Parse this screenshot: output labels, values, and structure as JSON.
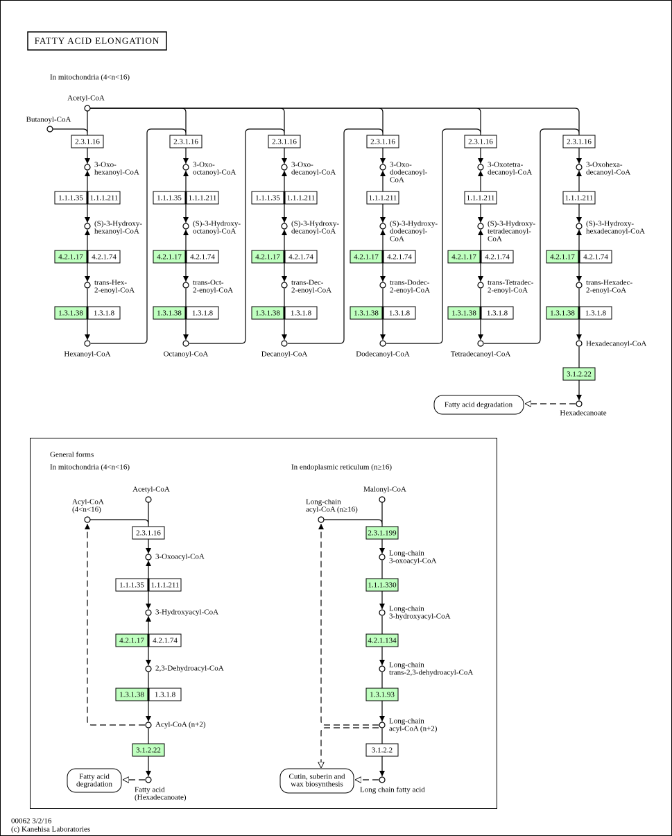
{
  "top": {
    "title": "FATTY ACID ELONGATION",
    "compartment": "In mitochondria (4<n<16)",
    "acetyl_coa": "Acetyl-CoA",
    "butanoyl_coa": "Butanoyl-CoA",
    "columns": [
      {
        "steps": [
          {
            "enzymes": [
              {
                "label": "2.3.1.16",
                "color": "#ffffff"
              }
            ],
            "product": [
              "3-Oxo-",
              "hexanoyl-CoA"
            ]
          },
          {
            "enzymes": [
              {
                "label": "1.1.1.35",
                "color": "#ffffff"
              },
              {
                "label": "1.1.1.211",
                "color": "#ffffff"
              }
            ],
            "product": [
              "(S)-3-Hydroxy-",
              "hexanoyl-CoA"
            ]
          },
          {
            "enzymes": [
              {
                "label": "4.2.1.17",
                "color": "#bfffbf"
              },
              {
                "label": "4.2.1.74",
                "color": "#ffffff"
              }
            ],
            "product": [
              "trans-Hex-",
              "2-enoyl-CoA"
            ]
          },
          {
            "enzymes": [
              {
                "label": "1.3.1.38",
                "color": "#bfffbf"
              },
              {
                "label": "1.3.1.8",
                "color": "#ffffff"
              }
            ],
            "product": [
              "Hexanoyl-CoA"
            ]
          }
        ]
      },
      {
        "steps": [
          {
            "enzymes": [
              {
                "label": "2.3.1.16",
                "color": "#ffffff"
              }
            ],
            "product": [
              "3-Oxo-",
              "octanoyl-CoA"
            ]
          },
          {
            "enzymes": [
              {
                "label": "1.1.1.35",
                "color": "#ffffff"
              },
              {
                "label": "1.1.1.211",
                "color": "#ffffff"
              }
            ],
            "product": [
              "(S)-3-Hydroxy-",
              "octanoyl-CoA"
            ]
          },
          {
            "enzymes": [
              {
                "label": "4.2.1.17",
                "color": "#bfffbf"
              },
              {
                "label": "4.2.1.74",
                "color": "#ffffff"
              }
            ],
            "product": [
              "trans-Oct-",
              "2-enoyl-CoA"
            ]
          },
          {
            "enzymes": [
              {
                "label": "1.3.1.38",
                "color": "#bfffbf"
              },
              {
                "label": "1.3.1.8",
                "color": "#ffffff"
              }
            ],
            "product": [
              "Octanoyl-CoA"
            ]
          }
        ]
      },
      {
        "steps": [
          {
            "enzymes": [
              {
                "label": "2.3.1.16",
                "color": "#ffffff"
              }
            ],
            "product": [
              "3-Oxo-",
              "decanoyl-CoA"
            ]
          },
          {
            "enzymes": [
              {
                "label": "1.1.1.35",
                "color": "#ffffff"
              },
              {
                "label": "1.1.1.211",
                "color": "#ffffff"
              }
            ],
            "product": [
              "(S)-3-Hydroxy-",
              "decanoyl-CoA"
            ]
          },
          {
            "enzymes": [
              {
                "label": "4.2.1.17",
                "color": "#bfffbf"
              },
              {
                "label": "4.2.1.74",
                "color": "#ffffff"
              }
            ],
            "product": [
              "trans-Dec-",
              "2-enoyl-CoA"
            ]
          },
          {
            "enzymes": [
              {
                "label": "1.3.1.38",
                "color": "#bfffbf"
              },
              {
                "label": "1.3.1.8",
                "color": "#ffffff"
              }
            ],
            "product": [
              "Decanoyl-CoA"
            ]
          }
        ]
      },
      {
        "steps": [
          {
            "enzymes": [
              {
                "label": "2.3.1.16",
                "color": "#ffffff"
              }
            ],
            "product": [
              "3-Oxo-",
              "dodecanoyl-",
              "CoA"
            ]
          },
          {
            "enzymes": [
              {
                "label": "1.1.1.211",
                "color": "#ffffff"
              }
            ],
            "product": [
              "(S)-3-Hydroxy-",
              "dodecanoyl-",
              "CoA"
            ]
          },
          {
            "enzymes": [
              {
                "label": "4.2.1.17",
                "color": "#bfffbf"
              },
              {
                "label": "4.2.1.74",
                "color": "#ffffff"
              }
            ],
            "product": [
              "trans-Dodec-",
              "2-enoyl-CoA"
            ]
          },
          {
            "enzymes": [
              {
                "label": "1.3.1.38",
                "color": "#bfffbf"
              },
              {
                "label": "1.3.1.8",
                "color": "#ffffff"
              }
            ],
            "product": [
              "Dodecanoyl-CoA"
            ]
          }
        ]
      },
      {
        "steps": [
          {
            "enzymes": [
              {
                "label": "2.3.1.16",
                "color": "#ffffff"
              }
            ],
            "product": [
              "3-Oxotetra-",
              "decanoyl-CoA"
            ]
          },
          {
            "enzymes": [
              {
                "label": "1.1.1.211",
                "color": "#ffffff"
              }
            ],
            "product": [
              "(S)-3-Hydroxy-",
              "tetradecanoyl-",
              "CoA"
            ]
          },
          {
            "enzymes": [
              {
                "label": "4.2.1.17",
                "color": "#bfffbf"
              },
              {
                "label": "4.2.1.74",
                "color": "#ffffff"
              }
            ],
            "product": [
              "trans-Tetradec-",
              "2-enoyl-CoA"
            ]
          },
          {
            "enzymes": [
              {
                "label": "1.3.1.38",
                "color": "#bfffbf"
              },
              {
                "label": "1.3.1.8",
                "color": "#ffffff"
              }
            ],
            "product": [
              "Tetradecanoyl-CoA"
            ]
          }
        ]
      },
      {
        "steps": [
          {
            "enzymes": [
              {
                "label": "2.3.1.16",
                "color": "#ffffff"
              }
            ],
            "product": [
              "3-Oxohexa-",
              "decanoyl-CoA"
            ]
          },
          {
            "enzymes": [
              {
                "label": "1.1.1.211",
                "color": "#ffffff"
              }
            ],
            "product": [
              "(S)-3-Hydroxy-",
              "hexadecanoyl-CoA"
            ]
          },
          {
            "enzymes": [
              {
                "label": "4.2.1.17",
                "color": "#bfffbf"
              },
              {
                "label": "4.2.1.74",
                "color": "#ffffff"
              }
            ],
            "product": [
              "trans-Hexadec-",
              "2-enoyl-CoA"
            ]
          },
          {
            "enzymes": [
              {
                "label": "1.3.1.38",
                "color": "#bfffbf"
              },
              {
                "label": "1.3.1.8",
                "color": "#ffffff"
              }
            ],
            "product": [
              "Hexadecanoyl-CoA"
            ]
          }
        ]
      }
    ],
    "thioesterase": {
      "label": "3.1.2.22",
      "color": "#bfffbf"
    },
    "hexadecanoate": "Hexadecanoate",
    "degradation": "Fatty acid degradation"
  },
  "general": {
    "title": "General forms",
    "mitochondria": {
      "compartment": "In mitochondria (4<n<16)",
      "start": "Acetyl-CoA",
      "acceptor": [
        "Acyl-CoA",
        "(4<n<16)"
      ],
      "steps": [
        {
          "enzymes": [
            {
              "label": "2.3.1.16",
              "color": "#ffffff"
            }
          ],
          "product": [
            "3-Oxoacyl-CoA"
          ]
        },
        {
          "enzymes": [
            {
              "label": "1.1.1.35",
              "color": "#ffffff"
            },
            {
              "label": "1.1.1.211",
              "color": "#ffffff"
            }
          ],
          "product": [
            "3-Hydroxyacyl-CoA"
          ]
        },
        {
          "enzymes": [
            {
              "label": "4.2.1.17",
              "color": "#bfffbf"
            },
            {
              "label": "4.2.1.74",
              "color": "#ffffff"
            }
          ],
          "product": [
            "2,3-Dehydroacyl-CoA"
          ]
        },
        {
          "enzymes": [
            {
              "label": "1.3.1.38",
              "color": "#bfffbf"
            },
            {
              "label": "1.3.1.8",
              "color": "#ffffff"
            }
          ],
          "product": [
            "Acyl-CoA (n+2)"
          ]
        },
        {
          "enzymes": [
            {
              "label": "3.1.2.22",
              "color": "#bfffbf"
            }
          ],
          "product": [
            "Fatty acid",
            "(Hexadecanoate)"
          ]
        }
      ],
      "pathway": [
        "Fatty acid",
        "degradation"
      ]
    },
    "er": {
      "compartment": "In endoplasmic reticulum (n≥16)",
      "start": "Malonyl-CoA",
      "acceptor": [
        "Long-chain",
        "acyl-CoA (n≥16)"
      ],
      "steps": [
        {
          "enzymes": [
            {
              "label": "2.3.1.199",
              "color": "#bfffbf"
            }
          ],
          "product": [
            "Long-chain",
            "3-oxoacyl-CoA"
          ]
        },
        {
          "enzymes": [
            {
              "label": "1.1.1.330",
              "color": "#bfffbf"
            }
          ],
          "product": [
            "Long-chain",
            "3-hydroxyacyl-CoA"
          ]
        },
        {
          "enzymes": [
            {
              "label": "4.2.1.134",
              "color": "#bfffbf"
            }
          ],
          "product": [
            "Long-chain",
            "trans-2,3-dehydroacyl-CoA"
          ]
        },
        {
          "enzymes": [
            {
              "label": "1.3.1.93",
              "color": "#bfffbf"
            }
          ],
          "product": [
            "Long-chain",
            "acyl-CoA (n+2)"
          ]
        },
        {
          "enzymes": [
            {
              "label": "3.1.2.2",
              "color": "#ffffff"
            }
          ],
          "product": [
            "Long chain fatty acid"
          ]
        }
      ],
      "pathway": [
        "Cutin, suberin and",
        "wax biosynthesis"
      ]
    }
  },
  "footer": [
    "00062 3/2/16",
    "(c) Kanehisa Laboratories"
  ]
}
